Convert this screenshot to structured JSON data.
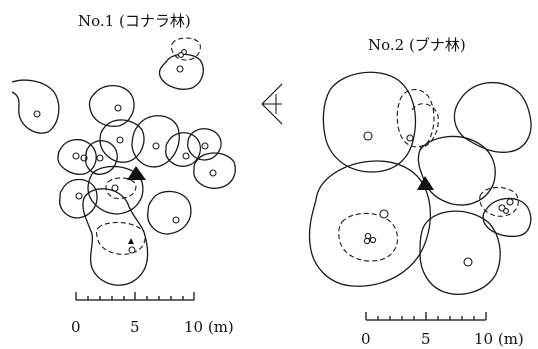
{
  "plot1": {
    "title": "No.1 (コナラ林)"
  },
  "plot2": {
    "title": "No.2 (ブナ林)"
  },
  "scale1": {
    "labels": [
      "0",
      "5",
      "10 (m)"
    ]
  },
  "scale2": {
    "labels": [
      "0",
      "5",
      "10 (m)"
    ]
  }
}
